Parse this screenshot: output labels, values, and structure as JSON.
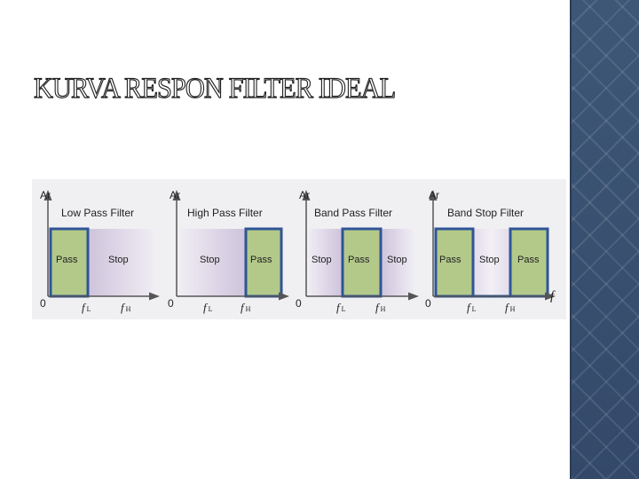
{
  "slide": {
    "title": "KURVA RESPON FILTER IDEAL"
  },
  "colors": {
    "pass_fill": "#b3c98a",
    "outline": "#2f5597",
    "stop_light": "#f0edf4",
    "stop_dark": "#cfc4dc",
    "sidebar": "#3b5272"
  },
  "diagram": {
    "axis_y_label": "Ar",
    "origin_label": "0",
    "tick_low": "f",
    "tick_low_sub": "L",
    "tick_high": "f",
    "tick_high_sub": "H",
    "extra_axis_label": "f",
    "panels": [
      {
        "title": "Low Pass Filter",
        "regions": [
          "Pass",
          "Stop"
        ]
      },
      {
        "title": "High Pass Filter",
        "regions": [
          "Stop",
          "Pass"
        ]
      },
      {
        "title": "Band Pass Filter",
        "regions": [
          "Stop",
          "Pass",
          "Stop"
        ]
      },
      {
        "title": "Band Stop Filter",
        "regions": [
          "Pass",
          "Stop",
          "Pass"
        ]
      }
    ]
  }
}
